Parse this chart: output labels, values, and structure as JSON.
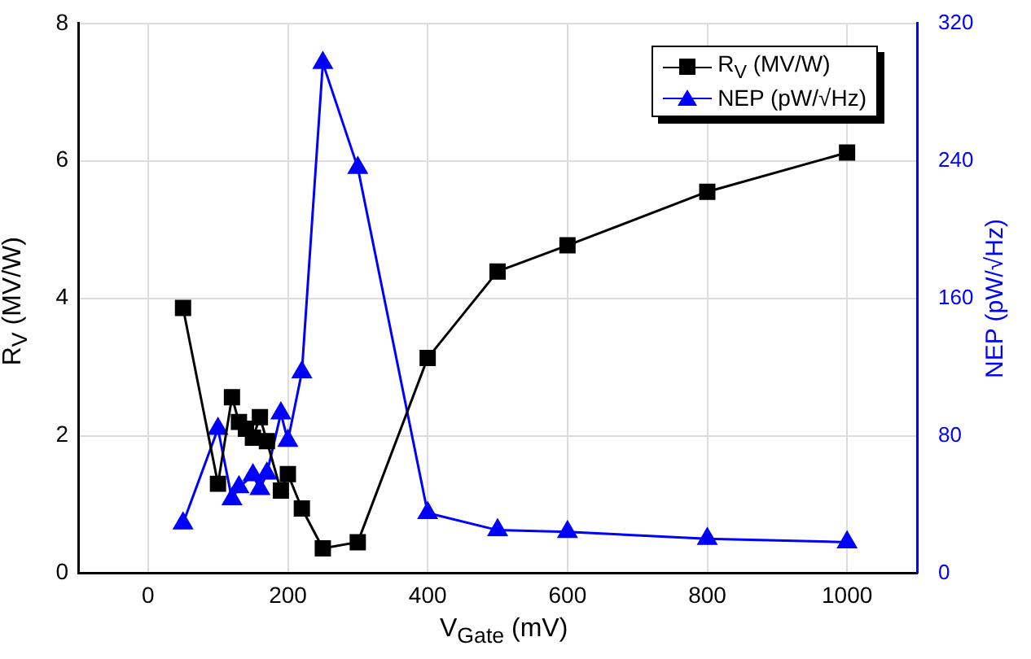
{
  "chart_data": {
    "type": "line",
    "xlabel": "V$_{Gate}$ (mV)",
    "ylabel": "R$_{V}$ (MV/W)",
    "y2label": "NEP (pW/√Hz)",
    "xlim": [
      -100,
      1100
    ],
    "xticks": [
      0,
      200,
      400,
      600,
      800,
      1000
    ],
    "ylim": [
      0,
      8
    ],
    "yticks": [
      0,
      2,
      4,
      6,
      8
    ],
    "y2lim": [
      0,
      320
    ],
    "y2ticks": [
      0,
      80,
      160,
      240,
      320
    ],
    "grid": true,
    "legend": "top right",
    "line_style": "solid",
    "series": [
      {
        "name": "R$_{V}$ (MV/W)",
        "color": "#000000",
        "marker": "square",
        "x": [
          50,
          100,
          120,
          130,
          140,
          150,
          160,
          170,
          190,
          200,
          220,
          250,
          300,
          400,
          500,
          600,
          800,
          1000
        ],
        "values": [
          3.86,
          1.3,
          2.56,
          2.2,
          2.1,
          1.97,
          2.27,
          1.92,
          1.2,
          1.44,
          0.94,
          0.36,
          0.45,
          3.13,
          4.39,
          4.77,
          5.55,
          6.12
        ]
      },
      {
        "name": "NEP (pW/√Hz)",
        "color": "#0000ff",
        "marker": "triangle",
        "axis": "y2",
        "x": [
          50,
          100,
          120,
          130,
          150,
          160,
          170,
          190,
          200,
          220,
          250,
          300,
          400,
          500,
          600,
          800,
          1000
        ],
        "values": [
          29,
          84,
          43,
          50,
          57,
          49,
          58,
          93,
          77,
          117,
          297,
          236,
          35,
          25,
          24,
          20,
          18
        ]
      }
    ]
  }
}
